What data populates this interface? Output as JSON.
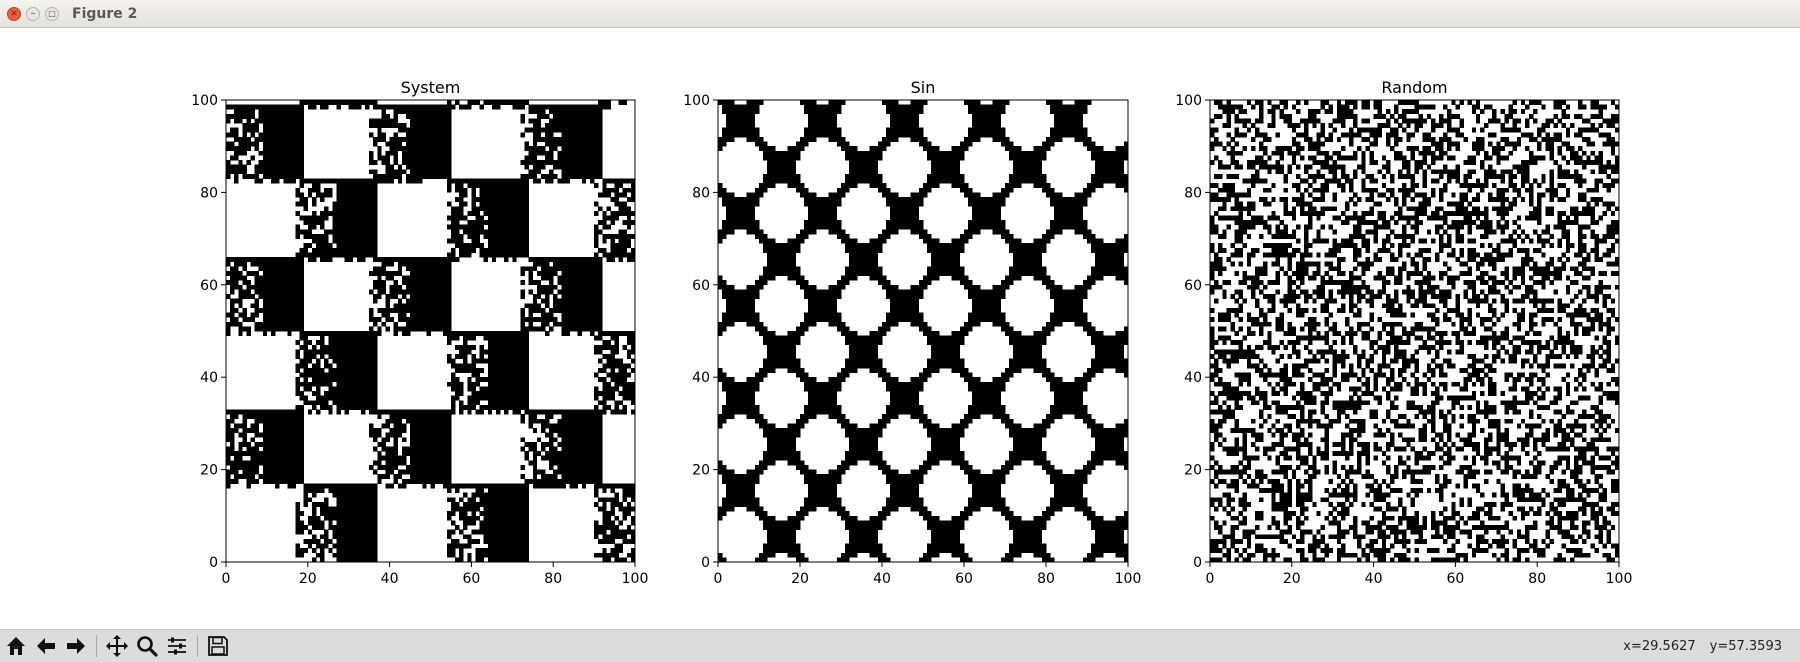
{
  "window": {
    "title": "Figure 2"
  },
  "toolbar": {
    "buttons": [
      {
        "name": "home-button",
        "icon": "home-icon"
      },
      {
        "name": "back-button",
        "icon": "arrow-left-icon"
      },
      {
        "name": "forward-button",
        "icon": "arrow-right-icon"
      },
      {
        "name": "pan-button",
        "icon": "move-icon"
      },
      {
        "name": "zoom-button",
        "icon": "magnifier-icon"
      },
      {
        "name": "configure-subplots-button",
        "icon": "sliders-icon"
      },
      {
        "name": "save-button",
        "icon": "floppy-icon"
      }
    ],
    "x_readout": "x=29.5627",
    "y_readout": "y=57.3593"
  },
  "chart_data": [
    {
      "type": "heatmap",
      "title": "System",
      "colormap": [
        "#ffffff",
        "#000000"
      ],
      "grid_size": [
        100,
        100
      ],
      "pattern": "rule-based checkerboard of black and white blocks (~18 cells) with irregular noisy fill",
      "xlim": [
        0,
        100
      ],
      "ylim": [
        0,
        100
      ],
      "xticks": [
        0,
        20,
        40,
        60,
        80,
        100
      ],
      "yticks": [
        0,
        20,
        40,
        60,
        80,
        100
      ],
      "grid": false
    },
    {
      "type": "heatmap",
      "title": "Sin",
      "colormap": [
        "#ffffff",
        "#000000"
      ],
      "grid_size": [
        100,
        100
      ],
      "pattern": "lattice of white rounded diamonds separated by black diagonal bands (period ~20 cells)",
      "xlim": [
        0,
        100
      ],
      "ylim": [
        0,
        100
      ],
      "xticks": [
        0,
        20,
        40,
        60,
        80,
        100
      ],
      "yticks": [
        0,
        20,
        40,
        60,
        80,
        100
      ],
      "grid": false
    },
    {
      "type": "heatmap",
      "title": "Random",
      "colormap": [
        "#ffffff",
        "#000000"
      ],
      "grid_size": [
        100,
        100
      ],
      "pattern": "random binary noise",
      "xlim": [
        0,
        100
      ],
      "ylim": [
        0,
        100
      ],
      "xticks": [
        0,
        20,
        40,
        60,
        80,
        100
      ],
      "yticks": [
        0,
        20,
        40,
        60,
        80,
        100
      ],
      "grid": false
    }
  ]
}
